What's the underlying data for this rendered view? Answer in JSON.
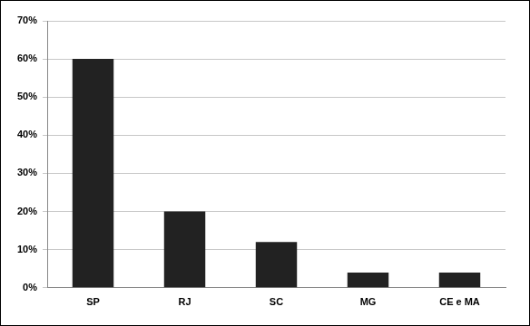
{
  "chart_data": {
    "type": "bar",
    "categories": [
      "SP",
      "RJ",
      "SC",
      "MG",
      "CE e MA"
    ],
    "values": [
      60,
      20,
      12,
      4,
      4
    ],
    "color": "#222222",
    "ylim": [
      0,
      70
    ],
    "yticks": [
      {
        "value": 0,
        "label": "0%"
      },
      {
        "value": 10,
        "label": "10%"
      },
      {
        "value": 20,
        "label": "20%"
      },
      {
        "value": 30,
        "label": "30%"
      },
      {
        "value": 40,
        "label": "40%"
      },
      {
        "value": 50,
        "label": "50%"
      },
      {
        "value": 60,
        "label": "60%"
      },
      {
        "value": 70,
        "label": "70%"
      }
    ],
    "grid": true
  }
}
